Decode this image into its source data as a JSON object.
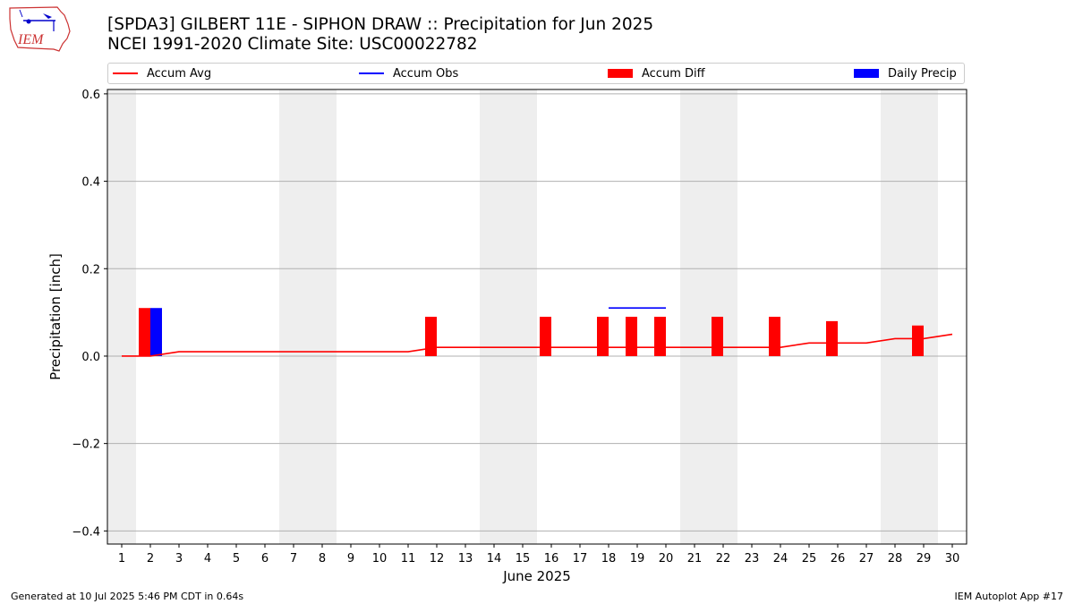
{
  "header": {
    "title_line1": "[SPDA3] GILBERT 11E - SIPHON DRAW :: Precipitation for Jun 2025",
    "title_line2": "NCEI 1991-2020 Climate Site: USC00022782",
    "logo_text": "IEM"
  },
  "footer": {
    "left": "Generated at 10 Jul 2025 5:46 PM CDT in 0.64s",
    "right": "IEM Autoplot App #17"
  },
  "colors": {
    "accum_avg": "#ff0000",
    "accum_obs": "#0000ff",
    "accum_diff": "#ff0000",
    "daily_precip": "#0000ff",
    "weekend_shade": "#eeeeee",
    "grid": "#b0b0b0"
  },
  "chart_data": {
    "type": "bar",
    "xlabel": "June 2025",
    "ylabel": "Precipitation [inch]",
    "xlim": [
      0.5,
      30.5
    ],
    "ylim": [
      -0.43,
      0.61
    ],
    "x_ticks": [
      1,
      2,
      3,
      4,
      5,
      6,
      7,
      8,
      9,
      10,
      11,
      12,
      13,
      14,
      15,
      16,
      17,
      18,
      19,
      20,
      21,
      22,
      23,
      24,
      25,
      26,
      27,
      28,
      29,
      30
    ],
    "y_ticks": [
      -0.4,
      -0.2,
      0.0,
      0.2,
      0.4,
      0.6
    ],
    "y_tick_labels": [
      "−0.4",
      "−0.2",
      "0.0",
      "0.2",
      "0.4",
      "0.6"
    ],
    "grid": "horizontal",
    "legend_position": "top",
    "weekend_spans": [
      [
        0.5,
        1.5
      ],
      [
        6.5,
        8.5
      ],
      [
        13.5,
        15.5
      ],
      [
        20.5,
        22.5
      ],
      [
        27.5,
        29.5
      ]
    ],
    "series": [
      {
        "name": "Accum Avg",
        "type": "line",
        "x": [
          1,
          2,
          3,
          4,
          5,
          6,
          7,
          8,
          9,
          10,
          11,
          12,
          13,
          14,
          15,
          16,
          17,
          18,
          19,
          20,
          21,
          22,
          23,
          24,
          25,
          26,
          27,
          28,
          29,
          30
        ],
        "values": [
          0.0,
          0.0,
          0.01,
          0.01,
          0.01,
          0.01,
          0.01,
          0.01,
          0.01,
          0.01,
          0.01,
          0.02,
          0.02,
          0.02,
          0.02,
          0.02,
          0.02,
          0.02,
          0.02,
          0.02,
          0.02,
          0.02,
          0.02,
          0.02,
          0.03,
          0.03,
          0.03,
          0.04,
          0.04,
          0.05
        ]
      },
      {
        "name": "Accum Obs",
        "type": "line",
        "x": [
          18,
          19,
          20
        ],
        "values": [
          0.11,
          0.11,
          0.11
        ]
      },
      {
        "name": "Accum Diff",
        "type": "bar",
        "x": [
          2,
          12,
          16,
          18,
          19,
          20,
          22,
          24,
          26,
          29
        ],
        "values": [
          0.11,
          0.09,
          0.09,
          0.09,
          0.09,
          0.09,
          0.09,
          0.09,
          0.08,
          0.07
        ]
      },
      {
        "name": "Daily Precip",
        "type": "bar",
        "x": [
          2
        ],
        "values": [
          0.11
        ]
      }
    ]
  }
}
